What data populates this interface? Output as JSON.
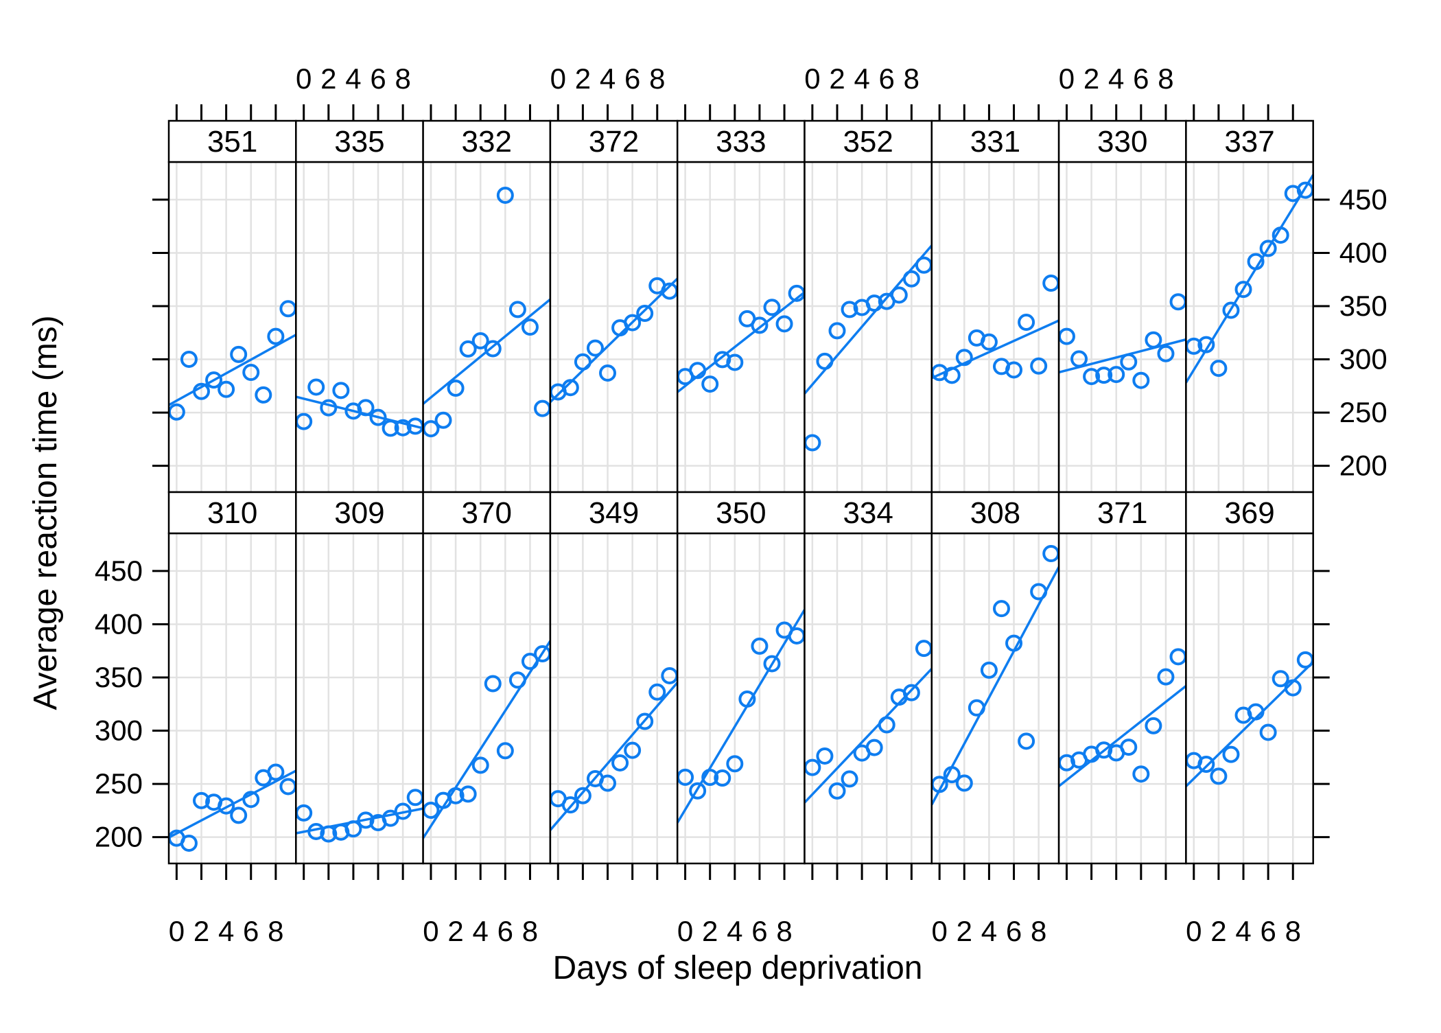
{
  "chart_data": {
    "type": "scatter",
    "title": "",
    "xlabel": "Days of sleep deprivation",
    "ylabel": "Average reaction time (ms)",
    "x": [
      0,
      1,
      2,
      3,
      4,
      5,
      6,
      7,
      8,
      9
    ],
    "x_ticks": [
      0,
      2,
      4,
      6,
      8
    ],
    "x_tick_labels": [
      "0",
      "2",
      "4",
      "6",
      "8"
    ],
    "y_ticks": [
      200,
      250,
      300,
      350,
      400,
      450
    ],
    "y_tick_labels": [
      "200",
      "250",
      "300",
      "350",
      "400",
      "450"
    ],
    "xlim": [
      -0.63,
      9.63
    ],
    "ylim": [
      175.27,
      485.41
    ],
    "grid": true,
    "fit": "least-squares line per panel",
    "point_style": "open-circle",
    "legend": "none",
    "colors": {
      "points": "#0E7DF0",
      "fit_line": "#0E7DF0",
      "grid": "#E2E2E2",
      "frame": "#000000",
      "strip_background": "#FFFFFF",
      "text": "#000000",
      "background": "#FFFFFF"
    },
    "layout": {
      "rows": 2,
      "cols": 9,
      "top_row": [
        "351",
        "335",
        "332",
        "372",
        "333",
        "352",
        "331",
        "330",
        "337"
      ],
      "bottom_row": [
        "310",
        "309",
        "370",
        "349",
        "350",
        "334",
        "308",
        "371",
        "369"
      ],
      "x_labels_top_over": [
        "335",
        "372",
        "352",
        "330"
      ],
      "x_labels_bottom_under": [
        "310",
        "370",
        "350",
        "308",
        "369"
      ],
      "y_labels_left_row": "bottom",
      "y_labels_right_row": "top"
    },
    "series": [
      {
        "subject": "351",
        "values": [
          250.53,
          300.06,
          269.89,
          280.59,
          271.82,
          304.63,
          287.75,
          266.6,
          321.54,
          347.57
        ]
      },
      {
        "subject": "335",
        "values": [
          241.61,
          273.95,
          254.49,
          270.8,
          251.45,
          254.64,
          245.45,
          235.31,
          235.75,
          237.25
        ]
      },
      {
        "subject": "332",
        "values": [
          234.86,
          242.81,
          272.96,
          309.77,
          317.46,
          310.0,
          454.16,
          346.83,
          330.3,
          253.86
        ]
      },
      {
        "subject": "372",
        "values": [
          269.41,
          273.47,
          297.6,
          310.63,
          287.17,
          329.61,
          334.48,
          343.22,
          369.14,
          364.12
        ]
      },
      {
        "subject": "333",
        "values": [
          283.84,
          289.56,
          276.77,
          299.81,
          297.17,
          338.17,
          332.03,
          348.84,
          333.36,
          362.04
        ]
      },
      {
        "subject": "352",
        "values": [
          221.68,
          298.19,
          326.88,
          346.86,
          348.74,
          352.83,
          354.43,
          360.43,
          375.64,
          388.54
        ]
      },
      {
        "subject": "331",
        "values": [
          287.61,
          285.0,
          301.82,
          320.12,
          316.28,
          293.31,
          290.08,
          334.82,
          293.75,
          371.58
        ]
      },
      {
        "subject": "330",
        "values": [
          321.54,
          300.4,
          283.86,
          285.13,
          285.8,
          297.59,
          280.24,
          318.26,
          305.35,
          354.04
        ]
      },
      {
        "subject": "337",
        "values": [
          312.37,
          313.81,
          291.61,
          346.12,
          365.73,
          391.84,
          404.26,
          416.69,
          455.86,
          458.92
        ]
      },
      {
        "subject": "310",
        "values": [
          199.05,
          194.33,
          234.32,
          232.84,
          229.31,
          220.46,
          235.42,
          255.75,
          261.01,
          247.52
        ]
      },
      {
        "subject": "309",
        "values": [
          222.73,
          205.27,
          202.98,
          204.71,
          207.72,
          215.96,
          213.63,
          217.73,
          224.3,
          237.31
        ]
      },
      {
        "subject": "370",
        "values": [
          225.26,
          234.52,
          238.9,
          240.47,
          267.54,
          344.19,
          281.15,
          347.59,
          365.16,
          372.23
        ]
      },
      {
        "subject": "349",
        "values": [
          236.1,
          230.32,
          238.93,
          254.92,
          250.71,
          269.77,
          281.56,
          308.73,
          336.28,
          351.65
        ]
      },
      {
        "subject": "350",
        "values": [
          256.3,
          243.45,
          256.21,
          255.53,
          268.92,
          329.72,
          379.44,
          362.92,
          394.49,
          389.05
        ]
      },
      {
        "subject": "334",
        "values": [
          265.47,
          276.2,
          243.36,
          254.67,
          279.02,
          284.19,
          305.52,
          331.52,
          335.75,
          377.3
        ]
      },
      {
        "subject": "308",
        "values": [
          249.56,
          258.7,
          250.8,
          321.44,
          356.85,
          414.69,
          382.2,
          290.15,
          430.59,
          466.35
        ]
      },
      {
        "subject": "371",
        "values": [
          269.88,
          272.44,
          277.9,
          281.79,
          279.17,
          284.51,
          259.27,
          304.63,
          350.55,
          369.47
        ]
      },
      {
        "subject": "369",
        "values": [
          271.92,
          268.44,
          257.24,
          277.71,
          314.52,
          317.72,
          298.45,
          348.84,
          340.29,
          366.51
        ]
      }
    ]
  }
}
